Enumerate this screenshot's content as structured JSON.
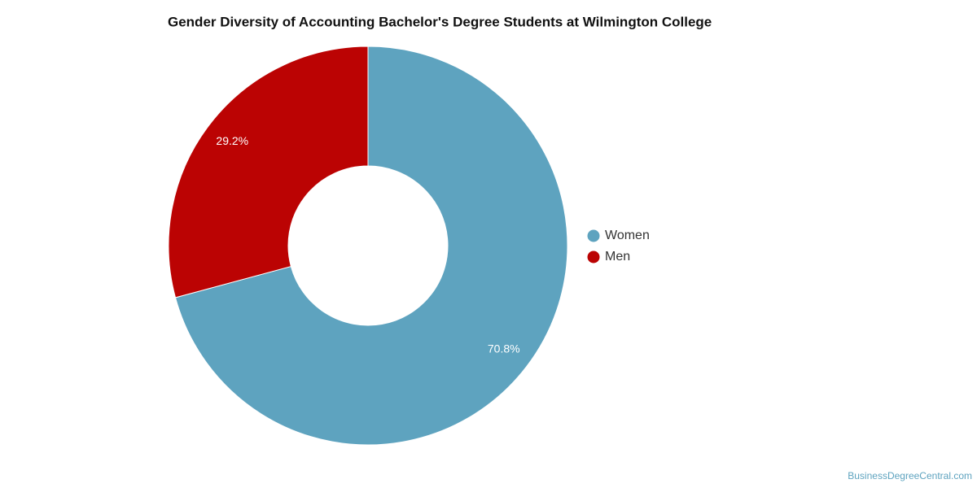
{
  "chart_data": {
    "type": "donut",
    "title": "Gender Diversity of Accounting Bachelor's Degree Students at Wilmington College",
    "series": [
      {
        "name": "Women",
        "color": "#5ea3bf",
        "values": [
          70.8
        ],
        "value_labels": [
          "70.8%"
        ]
      },
      {
        "name": "Men",
        "color": "#bb0303",
        "values": [
          29.2
        ],
        "value_labels": [
          "29.2%"
        ]
      }
    ],
    "legend": "right",
    "credit": "BusinessDegreeCentral.com"
  }
}
